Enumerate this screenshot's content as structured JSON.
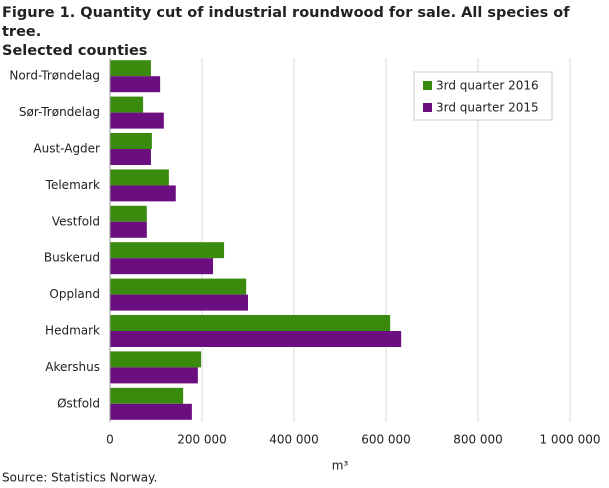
{
  "chart_data": {
    "type": "barh",
    "title": "Figure 1. Quantity cut of industrial roundwood for sale. All species of tree.\nSelected counties",
    "categories": [
      "Nord-Trøndelag",
      "Sør-Trøndelag",
      "Aust-Agder",
      "Telemark",
      "Vestfold",
      "Buskerud",
      "Oppland",
      "Hedmark",
      "Akershus",
      "Østfold"
    ],
    "series": [
      {
        "name": "3rd quarter 2016",
        "color": "#3a8a0e",
        "values": [
          89000,
          72000,
          91000,
          128000,
          80000,
          248000,
          296000,
          609000,
          198000,
          159000
        ]
      },
      {
        "name": "3rd quarter 2015",
        "color": "#6b0f80",
        "values": [
          109000,
          117000,
          89000,
          143000,
          80000,
          224000,
          300000,
          633000,
          191000,
          178000
        ]
      }
    ],
    "xlim": [
      0,
      1000000
    ],
    "xticks": [
      0,
      {
        "value": 200000,
        "label": "200 000"
      },
      {
        "value": 400000,
        "label": "400 000"
      },
      {
        "value": 600000,
        "label": "600 000"
      },
      {
        "value": 800000,
        "label": "800 000"
      },
      {
        "value": 1000000,
        "label": "1 000 000"
      }
    ],
    "xlabel": "m³",
    "grid": true,
    "legend": "upper right",
    "source": "Source: Statistics Norway."
  }
}
